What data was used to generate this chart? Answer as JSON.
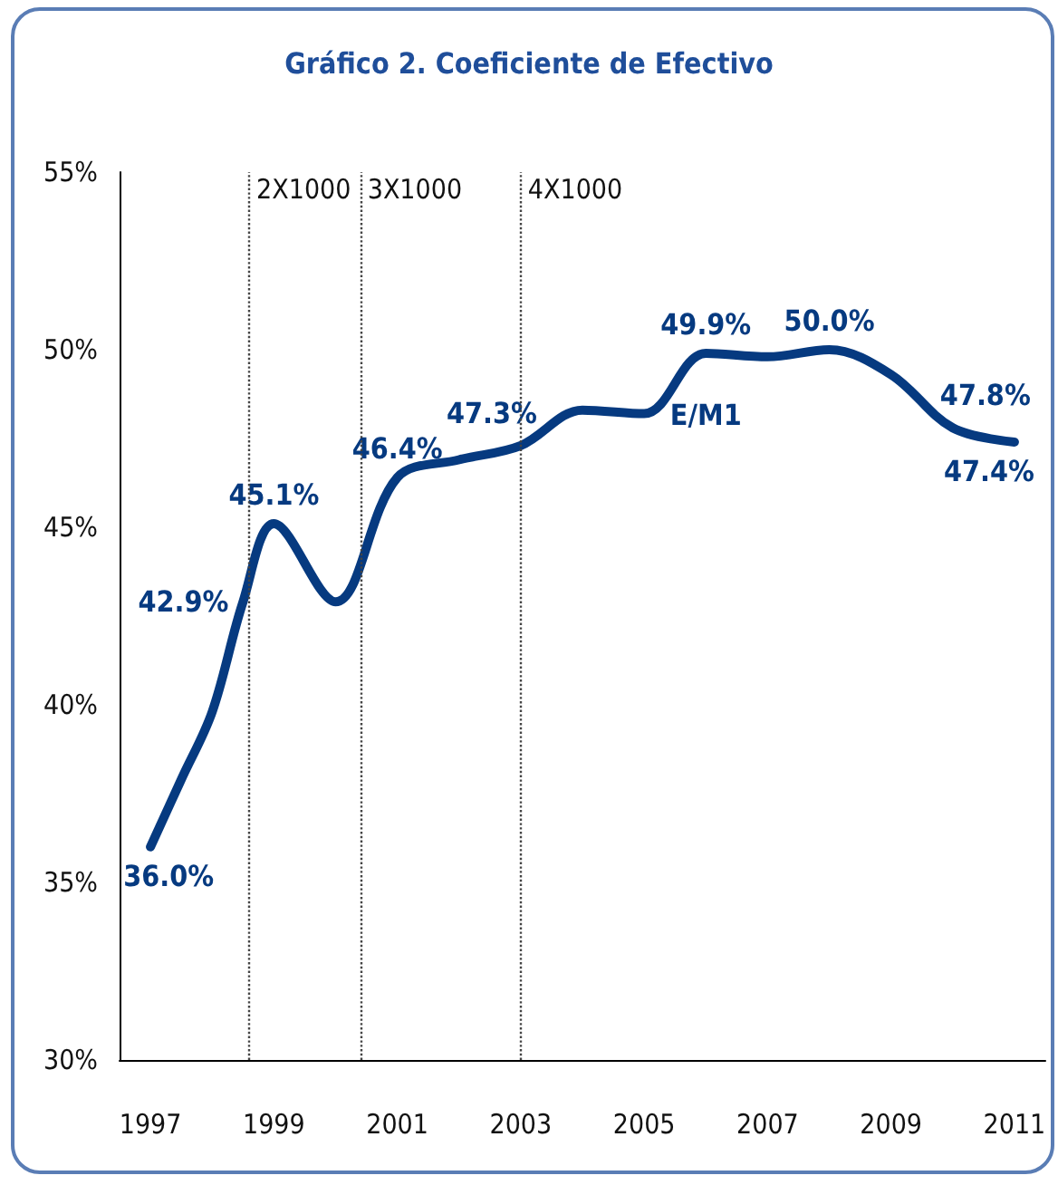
{
  "chart_data": {
    "type": "line",
    "title": "Gráfico 2. Coeficiente de Efectivo",
    "x": [
      1997,
      1997.5,
      1998,
      1998.5,
      1999,
      2000,
      2001,
      2002,
      2003,
      2004,
      2005,
      2006,
      2007,
      2008,
      2009,
      2010,
      2011
    ],
    "series": [
      {
        "name": "E/M1",
        "color": "#063a80",
        "values": [
          36.0,
          37.9,
          39.8,
          42.9,
          45.1,
          42.9,
          46.4,
          46.9,
          47.3,
          48.3,
          48.2,
          49.9,
          49.8,
          50.0,
          49.3,
          47.8,
          47.4
        ],
        "value_labels": [
          "36.0%",
          null,
          null,
          "42.9%",
          "45.1%",
          null,
          "46.4%",
          null,
          "47.3%",
          null,
          null,
          "49.9%",
          null,
          "50.0%",
          null,
          "47.8%",
          "47.4%"
        ]
      }
    ],
    "xlim": [
      1996.5,
      2011.5
    ],
    "xticks": [
      1997,
      1999,
      2001,
      2003,
      2005,
      2007,
      2009,
      2011
    ],
    "ylim": [
      30,
      55
    ],
    "yticks": [
      {
        "value": 30,
        "label": "30%"
      },
      {
        "value": 35,
        "label": "35%"
      },
      {
        "value": 40,
        "label": "40%"
      },
      {
        "value": 45,
        "label": "45%"
      },
      {
        "value": 50,
        "label": "50%"
      },
      {
        "value": 55,
        "label": "55%"
      }
    ],
    "ref_lines": [
      {
        "axis": "x",
        "value": 1998.6,
        "label": "2X1000",
        "color": "#444444",
        "line_style": "dotted"
      },
      {
        "axis": "x",
        "value": 2000.4,
        "label": "3X1000",
        "color": "#444444",
        "line_style": "dotted"
      },
      {
        "axis": "x",
        "value": 2003.0,
        "label": "4X1000",
        "color": "#444444",
        "line_style": "dotted"
      }
    ],
    "grid": false,
    "legend": false,
    "marker": "none",
    "line_style": "solid"
  }
}
